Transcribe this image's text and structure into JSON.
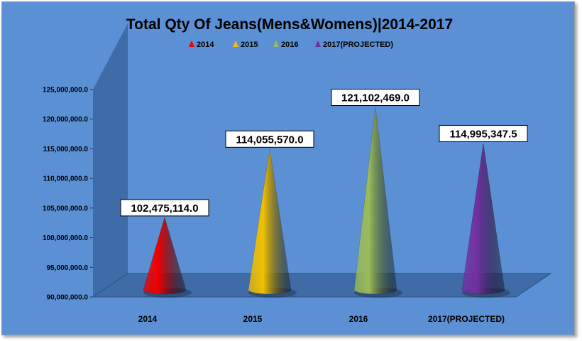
{
  "chart_data": {
    "type": "bar",
    "title": "Total Qty Of Jeans(Mens&Womens)|2014-2017",
    "categories": [
      "2014",
      "2015",
      "2016",
      "2017(PROJECTED)"
    ],
    "values": [
      102475114.0,
      114055570.0,
      121102469.0,
      114995347.5
    ],
    "data_labels": [
      "102,475,114.0",
      "114,055,570.0",
      "121,102,469.0",
      "114,995,347.5"
    ],
    "legend": {
      "position": "top",
      "entries": [
        "2014",
        "2015",
        "2016",
        "2017(PROJECTED)"
      ]
    },
    "y_ticks": [
      {
        "value": 90000000,
        "label": "90,000,000.0"
      },
      {
        "value": 95000000,
        "label": "95,000,000.0"
      },
      {
        "value": 100000000,
        "label": "100,000,000.0"
      },
      {
        "value": 105000000,
        "label": "105,000,000.0"
      },
      {
        "value": 110000000,
        "label": "110,000,000.0"
      },
      {
        "value": 115000000,
        "label": "115,000,000.0"
      },
      {
        "value": 120000000,
        "label": "120,000,000.0"
      },
      {
        "value": 125000000,
        "label": "125,000,000.0"
      }
    ],
    "ylim": [
      90000000,
      125000000
    ],
    "xlabel": "",
    "ylabel": "",
    "grid": false,
    "shape": "3d-cone",
    "colors": [
      "#ee0000",
      "#f0c000",
      "#9bbb59",
      "#7030a0"
    ]
  }
}
